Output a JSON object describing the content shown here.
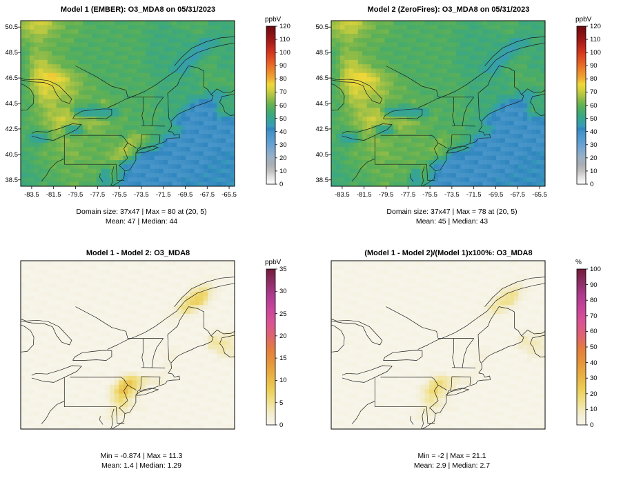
{
  "figure": {
    "background": "#ffffff"
  },
  "panels": [
    {
      "id": "model1-ember",
      "title": "Model 1 (EMBER): O3_MDA8 on 05/31/2023",
      "colorbar_label": "ppbV",
      "stats_line1": "Domain size: 37x47 | Max = 80 at (20, 5)",
      "stats_line2": "Mean: 47 | Median: 44"
    },
    {
      "id": "model2-zerofires",
      "title": "Model 2 (ZeroFires): O3_MDA8 on 05/31/2023",
      "colorbar_label": "ppbV",
      "stats_line1": "Domain size: 37x47 | Max = 78 at (20, 5)",
      "stats_line2": "Mean: 45 | Median: 43"
    },
    {
      "id": "difference",
      "title": "Model 1 - Model 2: O3_MDA8",
      "colorbar_label": "ppbV",
      "stats_line1": "Min = -0.874 | Max = 11.3",
      "stats_line2": "Mean: 1.4 | Median: 1.29"
    },
    {
      "id": "percent-difference",
      "title": "(Model 1 - Model 2)/(Model 1)x100%: O3_MDA8",
      "colorbar_label": "%",
      "stats_line1": "Min = -2 | Max = 21.1",
      "stats_line2": "Mean: 2.9 | Median: 2.7"
    }
  ],
  "chart_data": [
    {
      "type": "heatmap",
      "title": "Model 1 (EMBER): O3_MDA8 on 05/31/2023",
      "units": "ppbV",
      "lon_range": [
        -84.5,
        -65.0
      ],
      "lat_range": [
        38.0,
        51.0
      ],
      "lon_ticks": [
        "-83.5",
        "-81.5",
        "-79.5",
        "-77.5",
        "-75.5",
        "-73.5",
        "-71.5",
        "-69.5",
        "-67.5",
        "-65.5"
      ],
      "lat_ticks": [
        "50.5",
        "48.5",
        "46.5",
        "44.5",
        "42.5",
        "40.5",
        "38.5"
      ],
      "colorbar_range": [
        0,
        120
      ],
      "colorbar_ticks": [
        0,
        10,
        20,
        30,
        40,
        50,
        60,
        70,
        80,
        90,
        100,
        110,
        120
      ],
      "stats": {
        "domain_size": "37x47",
        "max": 80,
        "max_at": "(20, 5)",
        "mean": 47,
        "median": 44
      },
      "value_map": {
        "O": 42,
        ".": 40,
        ",": 45,
        "-": 48,
        "b": 51,
        "c": 54,
        "d": 57,
        "e": 60,
        "f": 63,
        "g": 67,
        "h": 71,
        "i": 75,
        "j": 78,
        "k": 80
      },
      "palette": [
        [
          0,
          "#ffffff"
        ],
        [
          5,
          "#e3e3e3"
        ],
        [
          10,
          "#c0c0c0"
        ],
        [
          15,
          "#a9aeb4"
        ],
        [
          20,
          "#9bb1c4"
        ],
        [
          25,
          "#83a9ce"
        ],
        [
          30,
          "#68a1d2"
        ],
        [
          35,
          "#539ad0"
        ],
        [
          40,
          "#4292c6"
        ],
        [
          42,
          "#2f86be"
        ],
        [
          44,
          "#3a9bb9"
        ],
        [
          48,
          "#35a39c"
        ],
        [
          52,
          "#3aa784"
        ],
        [
          56,
          "#49ac69"
        ],
        [
          60,
          "#62b153"
        ],
        [
          64,
          "#89ba4a"
        ],
        [
          68,
          "#b2c642"
        ],
        [
          72,
          "#d6d13d"
        ],
        [
          76,
          "#eed839"
        ],
        [
          80,
          "#f0ac33"
        ],
        [
          85,
          "#ee8d2b"
        ],
        [
          90,
          "#e96e26"
        ],
        [
          95,
          "#e05022"
        ],
        [
          100,
          "#d4361f"
        ],
        [
          105,
          "#ba251b"
        ],
        [
          110,
          "#9d1717"
        ],
        [
          115,
          "#851013"
        ],
        [
          120,
          "#6d0a0f"
        ]
      ],
      "grid": [
        "ghhgfeeddddddddccddddccc",
        "fggfeeedddddddcccccddccc",
        "effeeeddddddddcccccc,,cc",
        "dffeedddddddddccccc,,dcc",
        "dggfeeddddddddcccc,,ddcc",
        "dghgfeedddddddccc,,dddcc",
        "dhikigfedddddddcccccdddd",
        "dgihhgfeeddddddcccccdddd",
        "dfhhggfeeddddddcccccc,,c",
        "deggffeedgeddddcccc...cc",
        "defggg,,,,,eddddcc....cc",
        "defghhhggfeedddcc.......",
        "ddefg,,ffeeddddccc......",
        "d,,efffeeeedggdc........",
        "ddeeffeeeeeggcc,........",
        "cdeeeffeeegge.........OO",
        "cddeeeeeeee,.........OOO",
        "ccddeeeee,e,........OOOO",
        "ccdddeedd,d.......OOOOOO"
      ]
    },
    {
      "type": "heatmap",
      "title": "Model 2 (ZeroFires): O3_MDA8 on 05/31/2023",
      "units": "ppbV",
      "lon_range": [
        -84.5,
        -65.0
      ],
      "lat_range": [
        38.0,
        51.0
      ],
      "lon_ticks": [
        "-83.5",
        "-81.5",
        "-79.5",
        "-77.5",
        "-75.5",
        "-73.5",
        "-71.5",
        "-69.5",
        "-67.5",
        "-65.5"
      ],
      "lat_ticks": [
        "50.5",
        "48.5",
        "46.5",
        "44.5",
        "42.5",
        "40.5",
        "38.5"
      ],
      "colorbar_range": [
        0,
        120
      ],
      "colorbar_ticks": [
        0,
        10,
        20,
        30,
        40,
        50,
        60,
        70,
        80,
        90,
        100,
        110,
        120
      ],
      "stats": {
        "domain_size": "37x47",
        "max": 78,
        "max_at": "(20, 5)",
        "mean": 45,
        "median": 43
      },
      "value_map": {
        "O": 42,
        ".": 40,
        ",": 45,
        "-": 48,
        "b": 51,
        "c": 54,
        "d": 57,
        "e": 60,
        "f": 63,
        "g": 67,
        "h": 71,
        "i": 75,
        "j": 78,
        "k": 80
      },
      "palette": [
        [
          0,
          "#ffffff"
        ],
        [
          5,
          "#e3e3e3"
        ],
        [
          10,
          "#c0c0c0"
        ],
        [
          15,
          "#a9aeb4"
        ],
        [
          20,
          "#9bb1c4"
        ],
        [
          25,
          "#83a9ce"
        ],
        [
          30,
          "#68a1d2"
        ],
        [
          35,
          "#539ad0"
        ],
        [
          40,
          "#4292c6"
        ],
        [
          42,
          "#2f86be"
        ],
        [
          44,
          "#3a9bb9"
        ],
        [
          48,
          "#35a39c"
        ],
        [
          52,
          "#3aa784"
        ],
        [
          56,
          "#49ac69"
        ],
        [
          60,
          "#62b153"
        ],
        [
          64,
          "#89ba4a"
        ],
        [
          68,
          "#b2c642"
        ],
        [
          72,
          "#d6d13d"
        ],
        [
          76,
          "#eed839"
        ],
        [
          80,
          "#f0ac33"
        ],
        [
          85,
          "#ee8d2b"
        ],
        [
          90,
          "#e96e26"
        ],
        [
          95,
          "#e05022"
        ],
        [
          100,
          "#d4361f"
        ],
        [
          105,
          "#ba251b"
        ],
        [
          110,
          "#9d1717"
        ],
        [
          115,
          "#851013"
        ],
        [
          120,
          "#6d0a0f"
        ]
      ],
      "grid": [
        "ghhgfeeddddddddccddddccc",
        "fggfeeedddddddcccccddccc",
        "effeeeddddddddcccccc,,cc",
        "dffeedddddddddccccc,,dcc",
        "dggfeeddddddddcccc,,ddcc",
        "dghgfeedddddddccc,,dddcc",
        "dhijigfedddddddcccccdddd",
        "dgihhgfeeddddddcccccdddd",
        "dfhhggfeeddddddcccccc,,c",
        "deggffeedfeddddcccc...cc",
        "defggg,,,,,eddddcc....cc",
        "defghhhggfeedddcc.......",
        "ddefg,,ffeeddddccc......",
        "d,,efffeeeedfedc........",
        "ddeeffeeeeeffcc,........",
        "cdeeeffeeeeee.........OO",
        "cddeeeeeeee,.........OOO",
        "ccddeeeee,e,........OOOO",
        "ccdddeedd,d.......OOOOOO"
      ]
    },
    {
      "type": "heatmap",
      "title": "Model 1 - Model 2: O3_MDA8",
      "units": "ppbV",
      "lon_range": [
        -84.5,
        -65.0
      ],
      "lat_range": [
        38.0,
        51.0
      ],
      "lon_ticks": [],
      "lat_ticks": [],
      "colorbar_range": [
        0,
        35
      ],
      "colorbar_ticks": [
        0,
        5,
        10,
        15,
        20,
        25,
        30,
        35
      ],
      "stats": {
        "min": -0.874,
        "max": 11.3,
        "mean": 1.4,
        "median": 1.29
      },
      "value_map": {
        ".": 0.2,
        "a": 1.5,
        "b": 3,
        "c": 5,
        "d": 7,
        "e": 9,
        "f": 11
      },
      "palette": [
        [
          0,
          "#f7f5ea"
        ],
        [
          2,
          "#f3eed6"
        ],
        [
          4,
          "#f2e7ad"
        ],
        [
          6,
          "#efdc7c"
        ],
        [
          8,
          "#eccd55"
        ],
        [
          11,
          "#e9b243"
        ],
        [
          14,
          "#e6953a"
        ],
        [
          17,
          "#e37d3e"
        ],
        [
          20,
          "#de6370"
        ],
        [
          23,
          "#d95394"
        ],
        [
          26,
          "#c9459a"
        ],
        [
          29,
          "#ad3a8e"
        ],
        [
          32,
          "#8e2e67"
        ],
        [
          35,
          "#701c3a"
        ]
      ],
      "grid": [
        "........................",
        "........................",
        "....................aa..",
        "...................cdb..",
        "..................ced...",
        ".................bdb....",
        "................aa......",
        "........................",
        ".....................bbb",
        ".....................ccb",
        "................aa....bb",
        "................a.......",
        "................a.......",
        "...........decbb........",
        "..........cfdb..........",
        "..........cdb...........",
        "..........bcaa..........",
        ".........aba............",
        "........................"
      ]
    },
    {
      "type": "heatmap",
      "title": "(Model 1 - Model 2)/(Model 1)x100%: O3_MDA8",
      "units": "%",
      "lon_range": [
        -84.5,
        -65.0
      ],
      "lat_range": [
        38.0,
        51.0
      ],
      "lon_ticks": [],
      "lat_ticks": [],
      "colorbar_range": [
        0,
        100
      ],
      "colorbar_ticks": [
        0,
        10,
        20,
        30,
        40,
        50,
        60,
        70,
        80,
        90,
        100
      ],
      "stats": {
        "min": -2,
        "max": 21.1,
        "mean": 2.9,
        "median": 2.7
      },
      "value_map": {
        ".": 0.5,
        "a": 4,
        "b": 7,
        "c": 10,
        "d": 14,
        "e": 17,
        "f": 21
      },
      "palette": [
        [
          0,
          "#f7f5ea"
        ],
        [
          6,
          "#f3eed6"
        ],
        [
          11,
          "#f2e7ad"
        ],
        [
          17,
          "#efdc7c"
        ],
        [
          23,
          "#eccd55"
        ],
        [
          31,
          "#e9b243"
        ],
        [
          40,
          "#e6953a"
        ],
        [
          49,
          "#e37d3e"
        ],
        [
          57,
          "#de6370"
        ],
        [
          66,
          "#d95394"
        ],
        [
          74,
          "#c9459a"
        ],
        [
          83,
          "#ad3a8e"
        ],
        [
          91,
          "#8e2e67"
        ],
        [
          100,
          "#701c3a"
        ]
      ],
      "grid": [
        "........................",
        "........................",
        "....................aa..",
        "...................cdb..",
        "..................ced...",
        ".................bdb....",
        "................aa......",
        "........................",
        ".....................bbb",
        ".....................ccb",
        "................aa....bb",
        "................a.......",
        "................a.......",
        "...........decbb........",
        "..........cfdb..........",
        "..........cdb...........",
        "..........bcaa..........",
        ".........aba............",
        "........................"
      ]
    }
  ]
}
